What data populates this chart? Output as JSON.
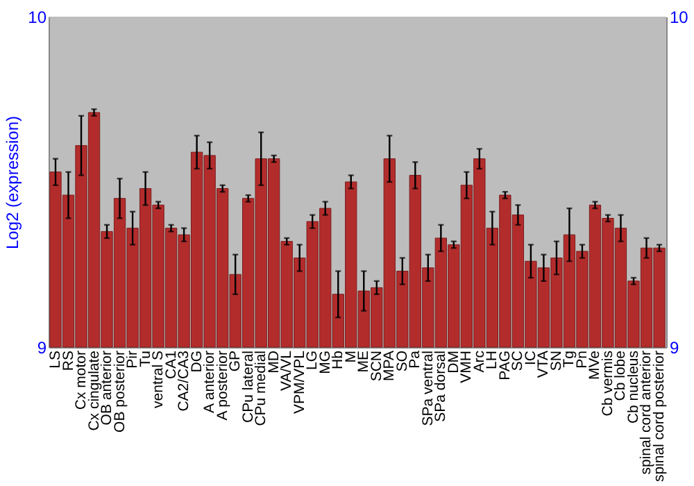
{
  "chart_data": {
    "type": "bar",
    "ylabel": "Log2 (expression)",
    "categories": [
      "LS",
      "RS",
      "Cx motor",
      "Cx cingulate",
      "OB anterior",
      "OB posterior",
      "Pir",
      "Tu",
      "ventral S",
      "CA1",
      "CA2/CA3",
      "DG",
      "A anterior",
      "A posterior",
      "GP",
      "CPu lateral",
      "CPu medial",
      "MD",
      "VA/VL",
      "VPM/VPL",
      "LG",
      "MG",
      "Hb",
      "M",
      "ME",
      "SCN",
      "MPA",
      "SO",
      "Pa",
      "SPa ventral",
      "SPa dorsal",
      "DM",
      "VMH",
      "Arc",
      "LH",
      "PAG",
      "SC",
      "IC",
      "VTA",
      "SN",
      "Tg",
      "Pn",
      "MVe",
      "Cb vermis",
      "Cb lobe",
      "Cb nucleus",
      "spinal cord anterior",
      "spinal cord posterior"
    ],
    "values": [
      9.53,
      9.46,
      9.61,
      9.71,
      9.35,
      9.45,
      9.36,
      9.48,
      9.43,
      9.36,
      9.34,
      9.59,
      9.58,
      9.48,
      9.22,
      9.45,
      9.57,
      9.57,
      9.32,
      9.27,
      9.38,
      9.42,
      9.16,
      9.5,
      9.17,
      9.18,
      9.57,
      9.23,
      9.52,
      9.24,
      9.33,
      9.31,
      9.49,
      9.57,
      9.36,
      9.46,
      9.4,
      9.26,
      9.24,
      9.27,
      9.34,
      9.29,
      9.43,
      9.39,
      9.36,
      9.2,
      9.3,
      9.3
    ],
    "errors": [
      0.04,
      0.07,
      0.09,
      0.01,
      0.02,
      0.06,
      0.05,
      0.05,
      0.01,
      0.01,
      0.02,
      0.05,
      0.04,
      0.01,
      0.06,
      0.01,
      0.08,
      0.01,
      0.01,
      0.04,
      0.02,
      0.02,
      0.07,
      0.02,
      0.06,
      0.02,
      0.07,
      0.04,
      0.04,
      0.04,
      0.04,
      0.01,
      0.04,
      0.03,
      0.05,
      0.01,
      0.03,
      0.05,
      0.04,
      0.05,
      0.08,
      0.02,
      0.01,
      0.01,
      0.04,
      0.01,
      0.03,
      0.01
    ],
    "color": "#b32c2c",
    "ylim": [
      9,
      10
    ],
    "yticks": [
      9,
      10
    ],
    "y2lim": [
      9,
      10
    ],
    "y2ticks": [
      9,
      10
    ],
    "grid": false
  }
}
